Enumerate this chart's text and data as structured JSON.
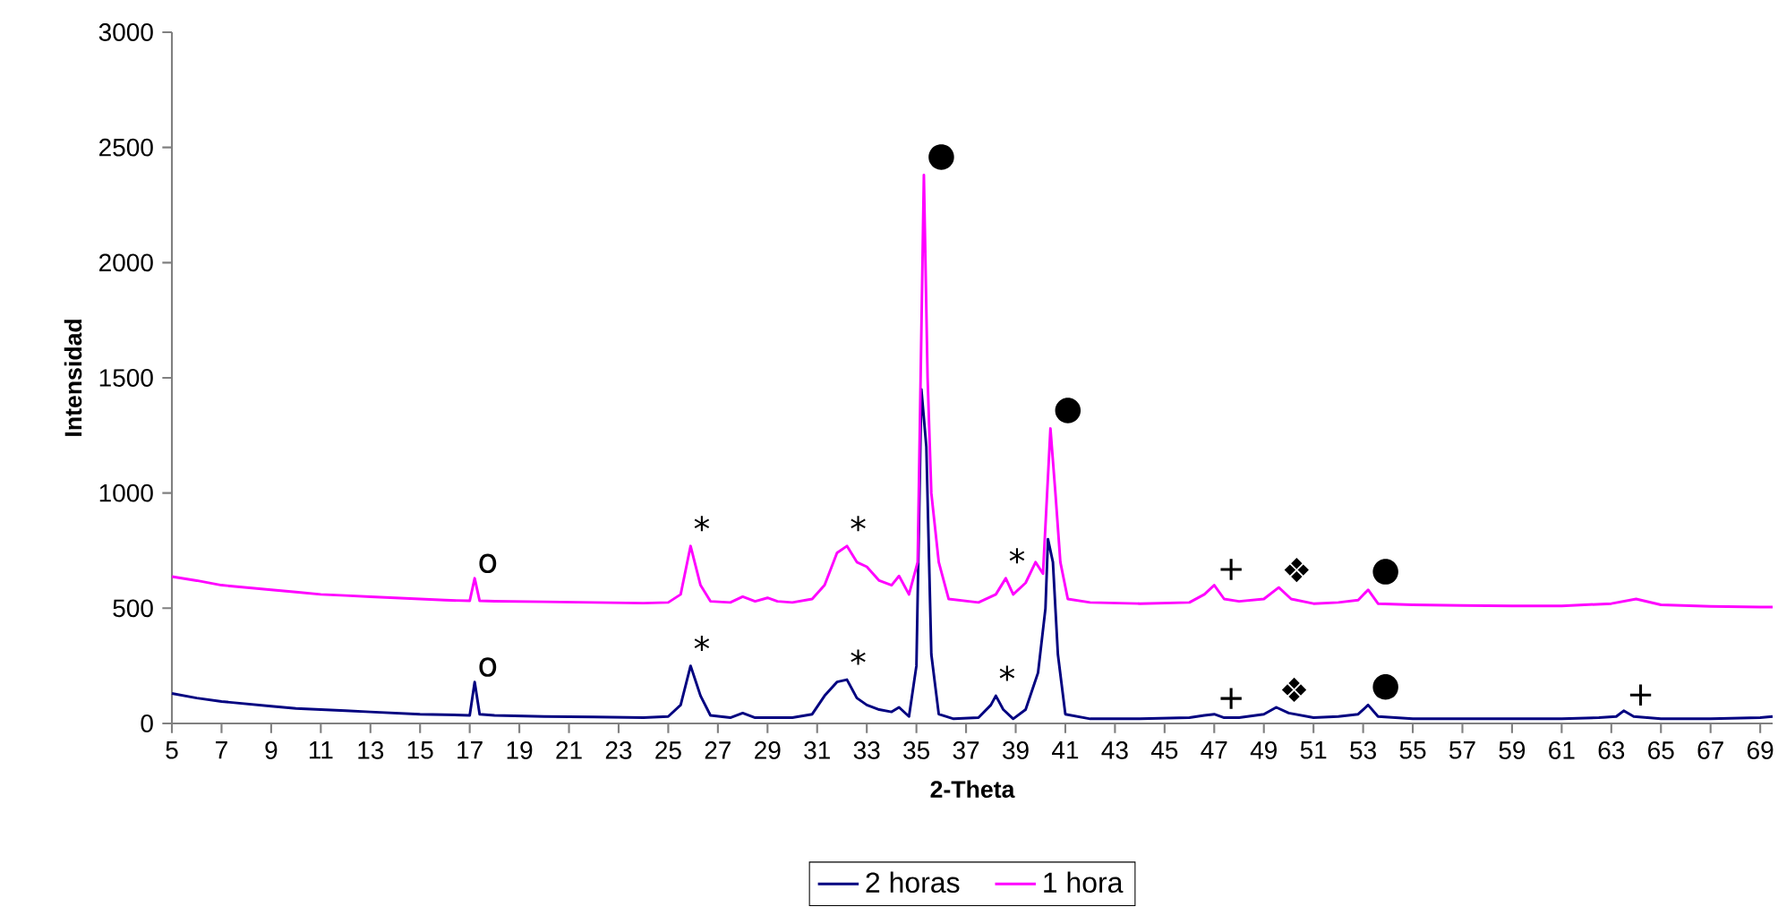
{
  "chart_data": {
    "type": "line",
    "xlabel": "2-Theta",
    "ylabel": "Intensidad",
    "xlim": [
      5,
      69.5
    ],
    "ylim": [
      0,
      3000
    ],
    "xticks": [
      5,
      7,
      9,
      11,
      13,
      15,
      17,
      19,
      21,
      23,
      25,
      27,
      29,
      31,
      33,
      35,
      37,
      39,
      41,
      43,
      45,
      47,
      49,
      51,
      53,
      55,
      57,
      59,
      61,
      63,
      65,
      67,
      69
    ],
    "yticks": [
      0,
      500,
      1000,
      1500,
      2000,
      2500,
      3000
    ],
    "legend": "bottom",
    "series": [
      {
        "name": "2 horas",
        "color": "#000080",
        "x": [
          5,
          6,
          7,
          8,
          9,
          10,
          11,
          12,
          13,
          14,
          15,
          16,
          17,
          17.2,
          17.4,
          18,
          20,
          22,
          24,
          25,
          25.5,
          25.9,
          26.3,
          26.7,
          27.5,
          28,
          28.5,
          30,
          30.8,
          31.3,
          31.8,
          32.2,
          32.6,
          33,
          33.5,
          34,
          34.3,
          34.7,
          35.0,
          35.2,
          35.4,
          35.6,
          35.9,
          36.5,
          37.5,
          38.0,
          38.2,
          38.5,
          38.9,
          39.4,
          39.9,
          40.2,
          40.3,
          40.5,
          40.7,
          41.0,
          42,
          44,
          46,
          46.6,
          47,
          47.4,
          48,
          49,
          49.5,
          50,
          51,
          52,
          52.8,
          53.2,
          53.6,
          55,
          57,
          59,
          61,
          62.5,
          63.2,
          63.5,
          63.9,
          65,
          67,
          69,
          69.5
        ],
        "values": [
          130,
          110,
          95,
          85,
          75,
          65,
          60,
          55,
          50,
          45,
          40,
          38,
          35,
          180,
          40,
          35,
          30,
          28,
          25,
          30,
          80,
          250,
          120,
          35,
          25,
          45,
          25,
          25,
          40,
          120,
          180,
          190,
          110,
          80,
          60,
          50,
          70,
          30,
          250,
          1450,
          1200,
          300,
          40,
          20,
          25,
          80,
          120,
          60,
          20,
          60,
          220,
          500,
          800,
          700,
          300,
          40,
          20,
          20,
          25,
          35,
          40,
          25,
          25,
          40,
          70,
          45,
          25,
          30,
          40,
          80,
          30,
          20,
          20,
          20,
          20,
          25,
          30,
          55,
          30,
          20,
          20,
          25,
          30
        ]
      },
      {
        "name": "1 hora",
        "color": "#ff00ff",
        "x": [
          5,
          6,
          7,
          8,
          9,
          10,
          11,
          12,
          13,
          14,
          15,
          16,
          17,
          17.2,
          17.4,
          18,
          20,
          22,
          24,
          25,
          25.5,
          25.9,
          26.3,
          26.7,
          27.5,
          28,
          28.5,
          29,
          29.4,
          30,
          30.8,
          31.3,
          31.8,
          32.2,
          32.6,
          33,
          33.5,
          34,
          34.3,
          34.7,
          35.05,
          35.3,
          35.45,
          35.6,
          35.9,
          36.3,
          37.5,
          38.2,
          38.6,
          38.9,
          39.4,
          39.8,
          40.1,
          40.4,
          40.6,
          40.8,
          41.1,
          42,
          44,
          46,
          46.6,
          47,
          47.4,
          48,
          49,
          49.6,
          50.1,
          51,
          52,
          52.8,
          53.2,
          53.6,
          55,
          57,
          59,
          61,
          63,
          64,
          65,
          67,
          69,
          69.5
        ],
        "values": [
          637,
          620,
          600,
          590,
          580,
          570,
          560,
          555,
          550,
          545,
          540,
          535,
          532,
          630,
          532,
          530,
          528,
          525,
          522,
          525,
          560,
          770,
          600,
          530,
          525,
          550,
          530,
          545,
          530,
          525,
          540,
          600,
          740,
          770,
          700,
          680,
          620,
          600,
          640,
          560,
          700,
          2380,
          1500,
          1000,
          700,
          540,
          525,
          560,
          630,
          560,
          610,
          700,
          650,
          1280,
          1000,
          700,
          540,
          525,
          520,
          525,
          560,
          600,
          540,
          530,
          540,
          590,
          540,
          520,
          525,
          535,
          580,
          520,
          515,
          512,
          510,
          510,
          520,
          540,
          515,
          508,
          505,
          505
        ]
      }
    ],
    "annotations": [
      {
        "text": "o",
        "x": 17.2,
        "y": 630
      },
      {
        "text": "*",
        "x": 25.9,
        "y": 770
      },
      {
        "text": "*",
        "x": 32.2,
        "y": 770
      },
      {
        "text": "●",
        "x": 35.3,
        "y": 2380
      },
      {
        "text": "*",
        "x": 38.6,
        "y": 630
      },
      {
        "text": "●",
        "x": 40.4,
        "y": 1280
      },
      {
        "text": "+",
        "x": 47,
        "y": 600
      },
      {
        "text": "❖",
        "x": 49.6,
        "y": 590
      },
      {
        "text": "●",
        "x": 53.2,
        "y": 580
      },
      {
        "text": "o",
        "x": 17.2,
        "y": 180
      },
      {
        "text": "*",
        "x": 25.9,
        "y": 250
      },
      {
        "text": "*",
        "x": 32.2,
        "y": 190
      },
      {
        "text": "*",
        "x": 38.2,
        "y": 120
      },
      {
        "text": "+",
        "x": 47,
        "y": 40
      },
      {
        "text": "❖",
        "x": 49.5,
        "y": 70
      },
      {
        "text": "●",
        "x": 53.2,
        "y": 80
      },
      {
        "text": "+",
        "x": 63.5,
        "y": 55
      }
    ]
  }
}
